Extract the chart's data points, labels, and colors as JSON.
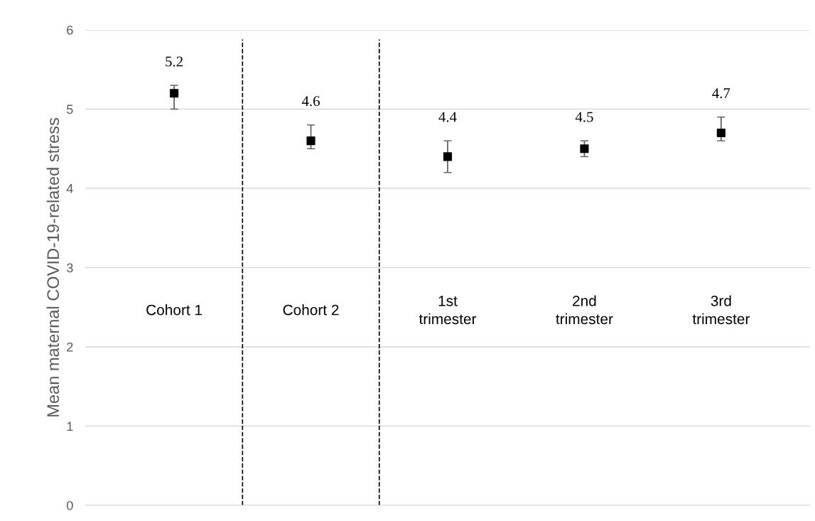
{
  "chart_data": {
    "type": "scatter",
    "ylabel": "Mean maternal COVID-19-related stress",
    "categories": [
      "Cohort 1",
      "Cohort 2",
      "1st\ntrimester",
      "2nd\ntrimester",
      "3rd\ntrimester"
    ],
    "values": [
      5.2,
      4.6,
      4.4,
      4.5,
      4.7
    ],
    "errors": [
      [
        5.0,
        5.3
      ],
      [
        4.5,
        4.8
      ],
      [
        4.2,
        4.6
      ],
      [
        4.4,
        4.6
      ],
      [
        4.6,
        4.9
      ]
    ],
    "color": "#000000",
    "marker": "square",
    "data_labels": true,
    "ylim": [
      0,
      6
    ],
    "yticks": [
      0,
      1,
      2,
      3,
      4,
      5,
      6
    ],
    "grid": "y"
  }
}
